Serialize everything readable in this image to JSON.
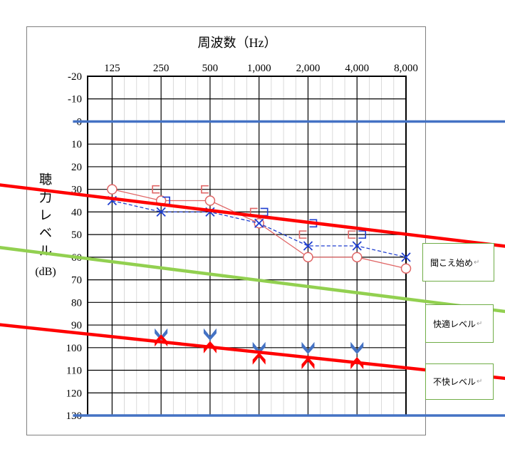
{
  "chart_data": {
    "type": "line",
    "title": "周波数（Hz）",
    "ylabel": "聴力レベル（dB）",
    "ylabel_main": "聴力レベル",
    "ylabel_unit": "(dB)",
    "x": [
      "125",
      "250",
      "500",
      "1,000",
      "2,000",
      "4,000",
      "8,000"
    ],
    "ylim": [
      -20,
      130
    ],
    "y_ticks": [
      "-20",
      "-10",
      "0",
      "10",
      "20",
      "30",
      "40",
      "50",
      "60",
      "70",
      "80",
      "90",
      "100",
      "110",
      "120",
      "130"
    ],
    "y_inverted": true,
    "grid": true,
    "series": [
      {
        "marker": "circle",
        "color": "#e06666",
        "line": "solid",
        "values": [
          30,
          35,
          35,
          45,
          60,
          60,
          65
        ]
      },
      {
        "marker": "cross",
        "color": "#1f3fd0",
        "line": "dashed",
        "values": [
          35,
          40,
          40,
          45,
          55,
          55,
          60
        ]
      },
      {
        "marker": "bracket-left",
        "color": "#e06666",
        "values": [
          null,
          30,
          30,
          40,
          50,
          50,
          null
        ]
      },
      {
        "marker": "bracket-right",
        "color": "#1f3fd0",
        "values": [
          null,
          35,
          null,
          40,
          45,
          50,
          null
        ]
      },
      {
        "marker": "uncomfortable-down",
        "color": "#4472c4",
        "values": [
          null,
          94,
          94,
          100,
          100,
          100,
          null
        ]
      },
      {
        "marker": "uncomfortable-up",
        "color": "#ff0000",
        "values": [
          null,
          97,
          100,
          105,
          107,
          107,
          null
        ]
      }
    ],
    "annotations": [
      {
        "label": "聞こえ始め",
        "color": "#ff0000",
        "line_from": [
          -25,
          27.5
        ],
        "line_to": [
          93,
          58.5
        ]
      },
      {
        "label": "快適レベル",
        "color": "#92d050",
        "line_from": [
          -31,
          53.5
        ],
        "line_to": [
          93,
          87.5
        ]
      },
      {
        "label": "不快レベル",
        "color": "#ff0000",
        "line_from": [
          -31,
          88
        ],
        "line_to": [
          93,
          116.5
        ]
      },
      {
        "label": "",
        "color": "#4472c4",
        "line_from": [
          -8,
          0
        ],
        "line_to": [
          93,
          0
        ]
      },
      {
        "label": "",
        "color": "#4472c4",
        "line_from": [
          -8,
          130
        ],
        "line_to": [
          93,
          130
        ]
      }
    ]
  }
}
